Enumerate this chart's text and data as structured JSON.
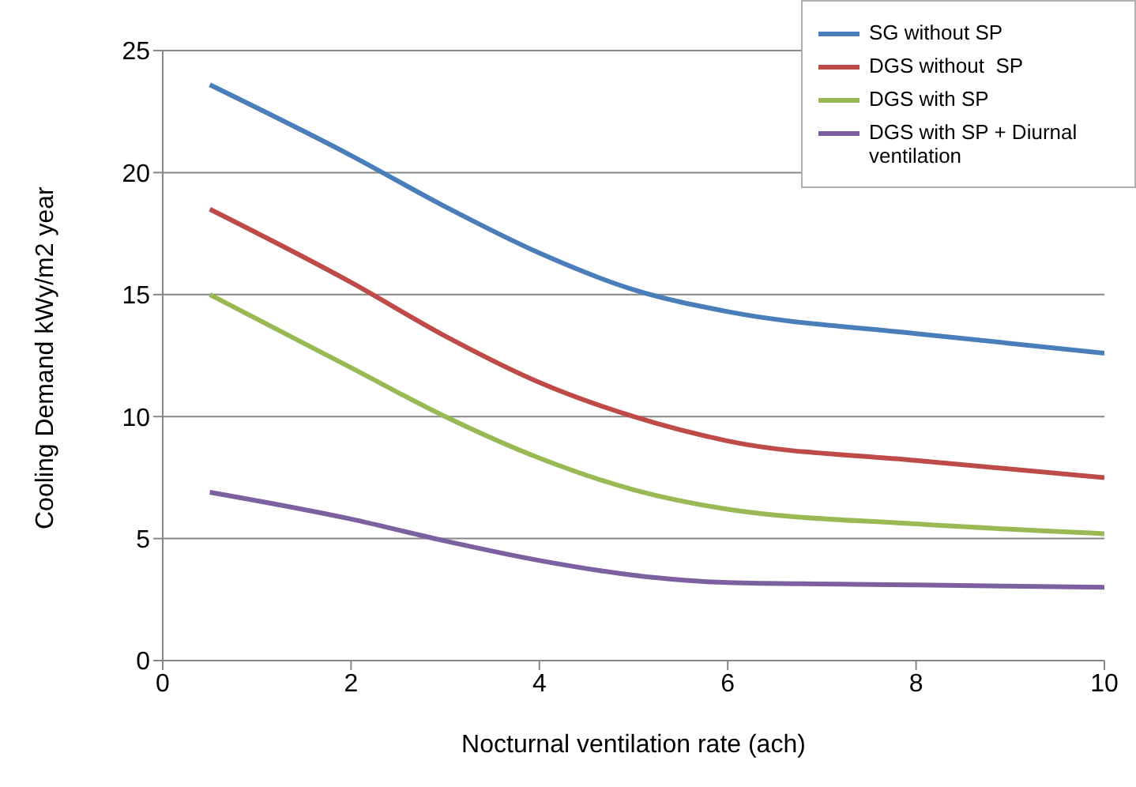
{
  "chart_data": {
    "type": "line",
    "xlabel": "Nocturnal ventilation rate (ach)",
    "ylabel": "Cooling Demand kWy/m2 year",
    "x": [
      0.5,
      2,
      3,
      4,
      5,
      6,
      8,
      10
    ],
    "series": [
      {
        "name": "SG without SP",
        "color": "#4a7ebb",
        "values": [
          23.6,
          20.7,
          18.6,
          16.7,
          15.2,
          14.3,
          13.4,
          12.6
        ]
      },
      {
        "name": "DGS without  SP",
        "color": "#be4b48",
        "values": [
          18.5,
          15.5,
          13.3,
          11.4,
          10.0,
          9.0,
          8.2,
          7.5
        ]
      },
      {
        "name": "DGS with SP",
        "color": "#98b954",
        "values": [
          15.0,
          12.0,
          10.0,
          8.3,
          7.0,
          6.2,
          5.6,
          5.2
        ]
      },
      {
        "name": "DGS with SP + Diurnal ventilation",
        "color": "#7d60a0",
        "values": [
          6.9,
          5.8,
          4.9,
          4.1,
          3.5,
          3.2,
          3.1,
          3.0
        ]
      }
    ],
    "xlim": [
      0,
      10
    ],
    "xticks": [
      0,
      2,
      4,
      6,
      8,
      10
    ],
    "ylim": [
      0,
      25
    ],
    "yticks": [
      0,
      5,
      10,
      15,
      20,
      25
    ],
    "grid": "y",
    "legend": "top right",
    "marker": "none",
    "line_style": "solid"
  }
}
